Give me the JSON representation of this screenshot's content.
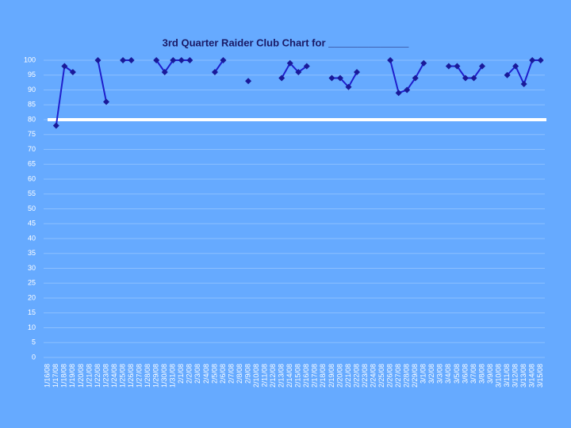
{
  "chart_data": {
    "type": "line",
    "title": "3rd Quarter Raider Club Chart for ______________",
    "categories": [
      "1/16/08",
      "1/17/08",
      "1/18/08",
      "1/19/08",
      "1/20/08",
      "1/21/08",
      "1/22/08",
      "1/23/08",
      "1/24/08",
      "1/25/08",
      "1/26/08",
      "1/27/08",
      "1/28/08",
      "1/29/08",
      "1/30/08",
      "1/31/08",
      "2/1/08",
      "2/2/08",
      "2/3/08",
      "2/4/08",
      "2/5/08",
      "2/6/08",
      "2/7/08",
      "2/8/08",
      "2/9/08",
      "2/10/08",
      "2/11/08",
      "2/12/08",
      "2/13/08",
      "2/14/08",
      "2/15/08",
      "2/16/08",
      "2/17/08",
      "2/18/08",
      "2/19/08",
      "2/20/08",
      "2/21/08",
      "2/22/08",
      "2/23/08",
      "2/24/08",
      "2/25/08",
      "2/26/08",
      "2/27/08",
      "2/28/08",
      "2/29/08",
      "3/1/08",
      "3/2/08",
      "3/3/08",
      "3/4/08",
      "3/5/08",
      "3/6/08",
      "3/7/08",
      "3/8/08",
      "3/9/08",
      "3/10/08",
      "3/11/08",
      "3/12/08",
      "3/13/08",
      "3/14/08",
      "3/15/08"
    ],
    "values": [
      null,
      78,
      98,
      96,
      null,
      null,
      100,
      86,
      null,
      100,
      100,
      null,
      null,
      100,
      96,
      100,
      100,
      100,
      null,
      null,
      96,
      100,
      null,
      null,
      93,
      null,
      null,
      null,
      94,
      99,
      96,
      98,
      null,
      null,
      94,
      94,
      91,
      96,
      null,
      null,
      null,
      100,
      89,
      90,
      94,
      99,
      null,
      null,
      98,
      98,
      94,
      94,
      98,
      null,
      null,
      95,
      98,
      92,
      100,
      100
    ],
    "color": "#1f1fcc",
    "marker_color": "#1a1a99",
    "reference_line": {
      "value": 80,
      "color": "#ffffff"
    },
    "ylim": [
      0,
      100
    ],
    "yticks": [
      0,
      5,
      10,
      15,
      20,
      25,
      30,
      35,
      40,
      45,
      50,
      55,
      60,
      65,
      70,
      75,
      80,
      85,
      90,
      95,
      100
    ],
    "grid": true
  }
}
